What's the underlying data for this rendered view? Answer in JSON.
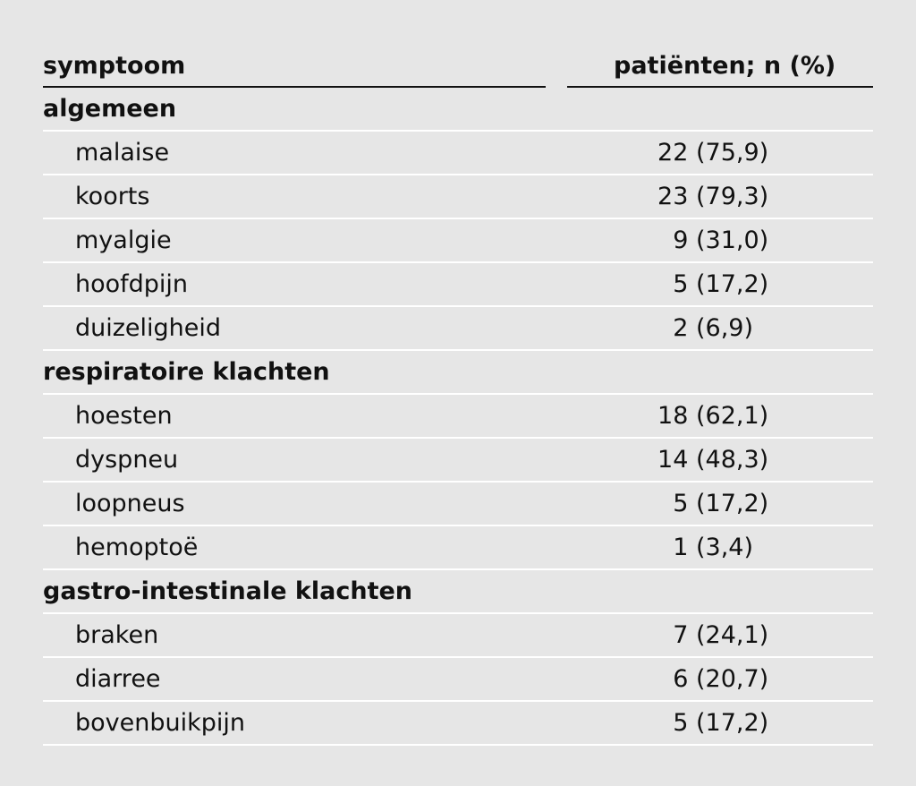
{
  "table": {
    "header": {
      "symptom": "symptoom",
      "patients": "patiënten; n (%)"
    },
    "groups": [
      {
        "label": "algemeen",
        "items": [
          {
            "label": "malaise",
            "n": "22",
            "pct": "(75,9)"
          },
          {
            "label": "koorts",
            "n": "23",
            "pct": "(79,3)"
          },
          {
            "label": "myalgie",
            "n": "9",
            "pct": "(31,0)"
          },
          {
            "label": "hoofdpijn",
            "n": "5",
            "pct": "(17,2)"
          },
          {
            "label": "duizeligheid",
            "n": "2",
            "pct": "(6,9)"
          }
        ]
      },
      {
        "label": "respiratoire klachten",
        "items": [
          {
            "label": "hoesten",
            "n": "18",
            "pct": "(62,1)"
          },
          {
            "label": "dyspneu",
            "n": "14",
            "pct": "(48,3)"
          },
          {
            "label": "loopneus",
            "n": "5",
            "pct": "(17,2)"
          },
          {
            "label": "hemoptoë",
            "n": "1",
            "pct": "(3,4)"
          }
        ]
      },
      {
        "label": "gastro-intestinale klachten",
        "items": [
          {
            "label": "braken",
            "n": "7",
            "pct": "(24,1)"
          },
          {
            "label": "diarree",
            "n": "6",
            "pct": "(20,7)"
          },
          {
            "label": "bovenbuikpijn",
            "n": "5",
            "pct": "(17,2)"
          }
        ]
      }
    ]
  }
}
